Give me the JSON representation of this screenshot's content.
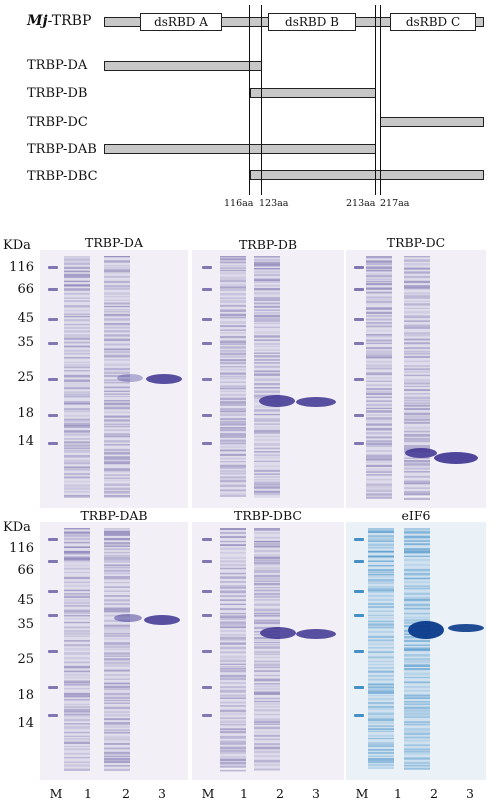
{
  "schematic": {
    "full_label_italic": "Mj",
    "full_label_rest": "-TRBP",
    "domains": [
      "dsRBD A",
      "dsRBD B",
      "dsRBD C"
    ],
    "constructs": [
      "TRBP-DA",
      "TRBP-DB",
      "TRBP-DC",
      "TRBP-DAB",
      "TRBP-DBC"
    ],
    "boundaries": [
      "116aa",
      "123aa",
      "213aa",
      "217aa"
    ]
  },
  "gels": {
    "kda_label": "KDa",
    "markers_top": [
      "116",
      "66",
      "45",
      "35",
      "25",
      "18",
      "14"
    ],
    "markers_bottom": [
      "116",
      "66",
      "45",
      "35",
      "25",
      "18",
      "14"
    ],
    "titles": [
      "TRBP-DA",
      "TRBP-DB",
      "TRBP-DC",
      "TRBP-DAB",
      "TRBP-DBC",
      "eIF6"
    ],
    "lanes": [
      "M",
      "1",
      "2",
      "3"
    ]
  }
}
